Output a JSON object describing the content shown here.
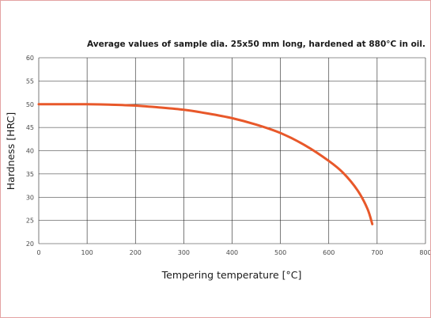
{
  "chart_data": {
    "type": "line",
    "title": "",
    "subtitle": "Average values of sample dia. 25x50 mm long, hardened at 880°C in oil.",
    "xlabel": "Tempering temperature [°C]",
    "ylabel": "Hardness [HRC]",
    "xlim": [
      0,
      800
    ],
    "ylim": [
      20,
      60
    ],
    "xticks": [
      "0",
      "100",
      "200",
      "300",
      "400",
      "500",
      "600",
      "700",
      "800"
    ],
    "yticks": [
      "20",
      "25",
      "30",
      "35",
      "40",
      "45",
      "50",
      "55",
      "60"
    ],
    "grid": true,
    "legend": "none",
    "series": [
      {
        "color": "#e8582a",
        "x": [
          0,
          100,
          150,
          200,
          250,
          300,
          350,
          400,
          450,
          500,
          550,
          600,
          630,
          660,
          680,
          690
        ],
        "y": [
          50,
          50,
          49.9,
          49.7,
          49.3,
          48.8,
          48.0,
          47.0,
          45.6,
          43.8,
          41.2,
          37.8,
          35.2,
          31.4,
          27.5,
          24.2
        ]
      }
    ]
  }
}
